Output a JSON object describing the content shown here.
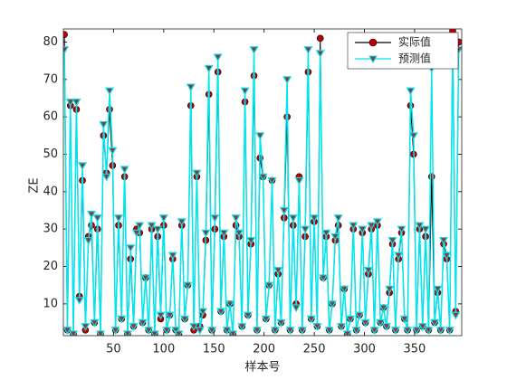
{
  "chart_data": {
    "type": "line",
    "xlabel": "样本号",
    "ylabel": "ZE",
    "x": [
      1,
      4,
      7,
      10,
      13,
      16,
      19,
      22,
      25,
      28,
      31,
      34,
      37,
      40,
      43,
      46,
      49,
      52,
      55,
      58,
      61,
      64,
      67,
      70,
      73,
      76,
      79,
      82,
      85,
      88,
      91,
      94,
      97,
      100,
      103,
      106,
      109,
      112,
      115,
      118,
      121,
      124,
      127,
      130,
      133,
      136,
      139,
      142,
      145,
      148,
      151,
      154,
      157,
      160,
      163,
      166,
      169,
      172,
      175,
      178,
      181,
      184,
      187,
      190,
      193,
      196,
      199,
      202,
      205,
      208,
      211,
      214,
      217,
      220,
      223,
      226,
      229,
      232,
      235,
      238,
      241,
      244,
      247,
      250,
      253,
      256,
      259,
      262,
      265,
      268,
      271,
      274,
      277,
      280,
      283,
      286,
      289,
      292,
      295,
      298,
      301,
      304,
      307,
      310,
      313,
      316,
      319,
      322,
      325,
      328,
      331,
      334,
      337,
      340,
      343,
      346,
      349,
      352,
      355,
      358,
      361,
      364,
      367,
      370,
      373,
      376,
      379,
      382,
      385,
      388,
      391,
      394
    ],
    "series": [
      {
        "name": "实际值",
        "color": "#000000",
        "marker_color": "#c00000",
        "marker": "circle",
        "values": [
          82,
          3,
          63,
          2,
          62,
          12,
          43,
          3,
          28,
          31,
          5,
          30,
          2,
          55,
          45,
          62,
          47,
          3,
          31,
          6,
          44,
          2,
          22,
          4,
          30,
          29,
          5,
          17,
          3,
          30,
          2,
          28,
          6,
          31,
          3,
          7,
          22,
          3,
          2,
          31,
          6,
          15,
          63,
          3,
          44,
          4,
          7,
          27,
          66,
          3,
          30,
          72,
          8,
          28,
          3,
          10,
          2,
          31,
          28,
          4,
          64,
          7,
          26,
          71,
          3,
          49,
          44,
          6,
          15,
          43,
          3,
          18,
          5,
          33,
          60,
          3,
          31,
          10,
          44,
          3,
          28,
          72,
          6,
          32,
          4,
          81,
          17,
          28,
          3,
          10,
          27,
          31,
          4,
          14,
          2,
          6,
          30,
          3,
          7,
          29,
          5,
          18,
          30,
          3,
          31,
          5,
          9,
          4,
          13,
          26,
          3,
          22,
          29,
          6,
          3,
          63,
          50,
          3,
          30,
          4,
          28,
          3,
          44,
          5,
          13,
          3,
          26,
          22,
          3,
          83,
          8,
          80
        ]
      },
      {
        "name": "预测值",
        "color": "#00e5ee",
        "marker_color": "#00e5ee",
        "marker": "triangle",
        "values": [
          78,
          3,
          64,
          2,
          64,
          11,
          47,
          4,
          27,
          34,
          5,
          33,
          2,
          58,
          44,
          67,
          51,
          3,
          33,
          6,
          46,
          2,
          25,
          4,
          29,
          31,
          5,
          17,
          3,
          31,
          2,
          30,
          7,
          33,
          3,
          7,
          23,
          3,
          2,
          32,
          6,
          15,
          68,
          4,
          45,
          3,
          8,
          29,
          73,
          3,
          33,
          76,
          8,
          29,
          3,
          10,
          2,
          33,
          29,
          4,
          67,
          7,
          27,
          78,
          3,
          55,
          44,
          6,
          15,
          43,
          3,
          19,
          5,
          35,
          70,
          3,
          33,
          9,
          43,
          3,
          30,
          78,
          6,
          33,
          4,
          77,
          17,
          29,
          3,
          10,
          28,
          33,
          4,
          14,
          2,
          6,
          31,
          3,
          7,
          30,
          5,
          19,
          31,
          3,
          32,
          5,
          9,
          4,
          14,
          27,
          3,
          23,
          30,
          6,
          3,
          67,
          55,
          3,
          31,
          4,
          30,
          3,
          73,
          5,
          14,
          3,
          27,
          23,
          3,
          78,
          7,
          78
        ]
      }
    ],
    "xlim": [
      0,
      397
    ],
    "xticks": [
      50,
      100,
      150,
      200,
      250,
      300,
      350
    ],
    "ylim": [
      1.5,
      83.5
    ],
    "yticks": [
      10,
      20,
      30,
      40,
      50,
      60,
      70,
      80
    ],
    "legend": "upper right",
    "grid": false
  }
}
